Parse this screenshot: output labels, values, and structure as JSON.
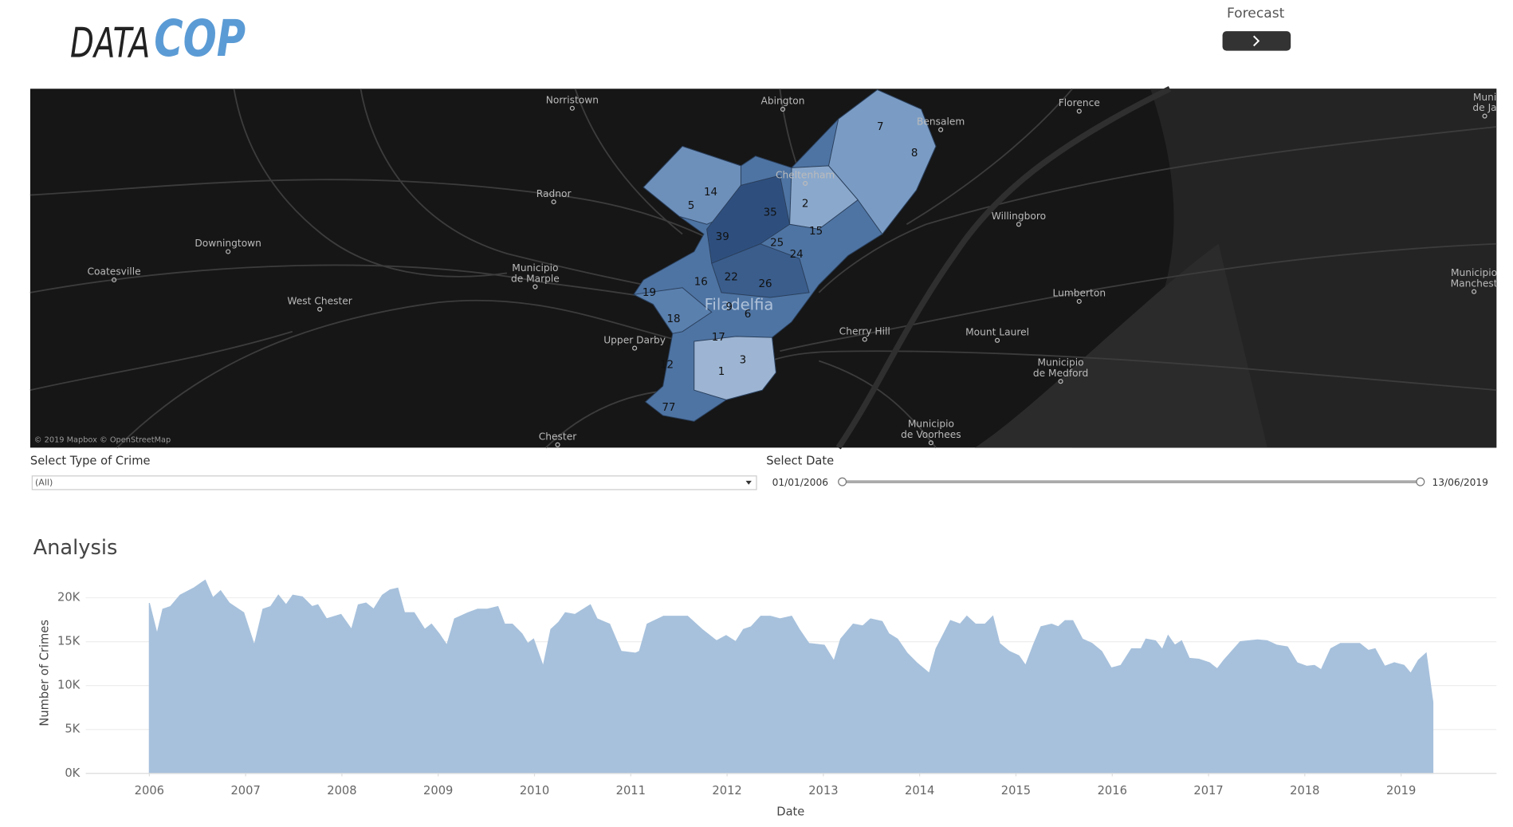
{
  "header": {
    "logo_left": "DATA",
    "logo_right": "COP",
    "forecast_label": "Forecast"
  },
  "map": {
    "places": [
      {
        "lines": [
          "Norristown"
        ]
      },
      {
        "lines": [
          "Abington"
        ]
      },
      {
        "lines": [
          "Florence"
        ]
      },
      {
        "lines": [
          "Bensalem"
        ]
      },
      {
        "lines": [
          "Muni",
          "de Ja"
        ]
      },
      {
        "lines": [
          "Cheltenham"
        ]
      },
      {
        "lines": [
          "Radnor"
        ]
      },
      {
        "lines": [
          "Willingboro"
        ]
      },
      {
        "lines": [
          "Downingtown"
        ]
      },
      {
        "lines": [
          "Coatesville"
        ]
      },
      {
        "lines": [
          "Municipio",
          "de Marple"
        ]
      },
      {
        "lines": [
          "Municipio",
          "Manchest"
        ]
      },
      {
        "lines": [
          "Lumberton"
        ]
      },
      {
        "lines": [
          "West Chester"
        ]
      },
      {
        "lines": [
          "Cherry Hill"
        ]
      },
      {
        "lines": [
          "Mount Laurel"
        ]
      },
      {
        "lines": [
          "Upper Darby"
        ]
      },
      {
        "lines": [
          "Municipio",
          "de Medford"
        ]
      },
      {
        "lines": [
          "Municipio",
          "de Voorhees"
        ]
      },
      {
        "lines": [
          "Chester"
        ]
      }
    ],
    "city_label": "Filadelfia",
    "districts": [
      "7",
      "8",
      "14",
      "5",
      "35",
      "2",
      "15",
      "39",
      "25",
      "24",
      "22",
      "16",
      "26",
      "19",
      "9",
      "6",
      "18",
      "17",
      "3",
      "12",
      "1",
      "77"
    ],
    "attribution": "© 2019 Mapbox © OpenStreetMap"
  },
  "filters": {
    "crime_label": "Select Type of Crime",
    "crime_value": "(All)",
    "date_label": "Select Date",
    "date_start": "01/01/2006",
    "date_end": "13/06/2019"
  },
  "chart_data": {
    "type": "area",
    "title": "Analysis",
    "ylabel": "Number of Crimes",
    "xlabel": "Date",
    "color": "#a7c1dc",
    "x": [
      2006.0,
      2006.08,
      2006.14,
      2006.22,
      2006.32,
      2006.46,
      2006.58,
      2006.66,
      2006.74,
      2006.83,
      2006.98,
      2007.09,
      2007.18,
      2007.26,
      2007.34,
      2007.42,
      2007.49,
      2007.59,
      2007.69,
      2007.75,
      2007.84,
      2007.99,
      2008.1,
      2008.17,
      2008.25,
      2008.33,
      2008.42,
      2008.5,
      2008.58,
      2008.65,
      2008.75,
      2008.86,
      2008.93,
      2009.01,
      2009.09,
      2009.17,
      2009.31,
      2009.41,
      2009.51,
      2009.62,
      2009.69,
      2009.77,
      2009.87,
      2009.93,
      2009.99,
      2010.09,
      2010.17,
      2010.25,
      2010.32,
      2010.42,
      2010.58,
      2010.65,
      2010.78,
      2010.9,
      2011.05,
      2011.09,
      2011.17,
      2011.34,
      2011.44,
      2011.59,
      2011.74,
      2011.89,
      2011.99,
      2012.09,
      2012.17,
      2012.25,
      2012.35,
      2012.45,
      2012.55,
      2012.67,
      2012.75,
      2012.85,
      2013.01,
      2013.11,
      2013.18,
      2013.31,
      2013.41,
      2013.49,
      2013.61,
      2013.68,
      2013.77,
      2013.87,
      2013.97,
      2014.1,
      2014.17,
      2014.25,
      2014.32,
      2014.42,
      2014.49,
      2014.58,
      2014.68,
      2014.76,
      2014.83,
      2014.93,
      2015.03,
      2015.1,
      2015.18,
      2015.26,
      2015.37,
      2015.44,
      2015.51,
      2015.59,
      2015.69,
      2015.79,
      2015.89,
      2015.99,
      2016.09,
      2016.2,
      2016.3,
      2016.35,
      2016.45,
      2016.52,
      2016.58,
      2016.65,
      2016.72,
      2016.8,
      2016.9,
      2017.01,
      2017.09,
      2017.16,
      2017.33,
      2017.51,
      2017.61,
      2017.71,
      2017.82,
      2017.92,
      2018.02,
      2018.1,
      2018.17,
      2018.27,
      2018.37,
      2018.57,
      2018.66,
      2018.73,
      2018.83,
      2018.93,
      2019.03,
      2019.1,
      2019.18,
      2019.26,
      2019.33
    ],
    "values": [
      19400,
      15900,
      18700,
      19000,
      20300,
      21100,
      22000,
      20000,
      20800,
      19400,
      18300,
      14600,
      18700,
      19000,
      20300,
      19200,
      20300,
      20100,
      19000,
      19200,
      17600,
      18100,
      16400,
      19200,
      19400,
      18700,
      20300,
      20900,
      21100,
      18300,
      18300,
      16400,
      17000,
      15900,
      14600,
      17600,
      18300,
      18700,
      18700,
      19000,
      17000,
      17000,
      15900,
      14800,
      15300,
      12200,
      16400,
      17200,
      18300,
      18100,
      19200,
      17600,
      17000,
      13900,
      13700,
      13900,
      17000,
      17900,
      17900,
      17900,
      16400,
      15100,
      15700,
      15000,
      16400,
      16700,
      17900,
      17900,
      17600,
      17900,
      16400,
      14800,
      14600,
      12800,
      15300,
      17000,
      16800,
      17600,
      17300,
      15900,
      15300,
      13700,
      12600,
      11400,
      14200,
      15900,
      17400,
      17000,
      17900,
      17000,
      17000,
      17900,
      14800,
      13900,
      13400,
      12300,
      14600,
      16700,
      17000,
      16700,
      17400,
      17400,
      15300,
      14800,
      13900,
      12000,
      12300,
      14200,
      14200,
      15300,
      15100,
      14100,
      15700,
      14600,
      15100,
      13100,
      13000,
      12600,
      11900,
      12900,
      15000,
      15200,
      15100,
      14600,
      14400,
      12600,
      12200,
      12300,
      11800,
      14200,
      14800,
      14800,
      14000,
      14200,
      12200,
      12600,
      12300,
      11400,
      12900,
      13700,
      8100
    ],
    "xlim": [
      2005.34,
      2019.99
    ],
    "xticks": [
      2006,
      2007,
      2008,
      2009,
      2010,
      2011,
      2012,
      2013,
      2014,
      2015,
      2016,
      2017,
      2018,
      2019
    ],
    "ylim": [
      0,
      23100
    ],
    "yticks": [
      {
        "value": 0,
        "label": "0K"
      },
      {
        "value": 5000,
        "label": "5K"
      },
      {
        "value": 10000,
        "label": "10K"
      },
      {
        "value": 15000,
        "label": "15K"
      },
      {
        "value": 20000,
        "label": "20K"
      }
    ],
    "grid": true
  }
}
